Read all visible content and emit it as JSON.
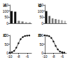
{
  "chart_data": [
    {
      "type": "bar",
      "title": "A",
      "categories": [
        null,
        null,
        null,
        null,
        null,
        null
      ],
      "values": [
        100,
        95,
        20,
        15,
        10,
        8
      ],
      "colors": [
        "#111111",
        "#111111",
        "#777777",
        "#777777",
        "#aaaaaa",
        "#aaaaaa"
      ],
      "ylim": [
        0,
        150
      ],
      "yticks": [
        0,
        50,
        100,
        150
      ],
      "grid": false
    },
    {
      "type": "bar",
      "title": "B",
      "categories": [
        null,
        null,
        null,
        null,
        null,
        null,
        null
      ],
      "values": [
        100,
        60,
        40,
        35,
        30,
        25,
        20
      ],
      "colors": [
        "#111111",
        "#555555",
        "#777777",
        "#777777",
        "#999999",
        "#aaaaaa",
        "#bbbbbb"
      ],
      "ylim": [
        0,
        150
      ],
      "yticks": [
        0,
        50,
        100,
        150
      ],
      "grid": false
    },
    {
      "type": "line",
      "title": "C",
      "marker": "circle",
      "color": "#111111",
      "x": [
        -10,
        -9.5,
        -9,
        -8.5,
        -8,
        -7.5,
        -7,
        -6.5,
        -6,
        -5.5
      ],
      "values": [
        2,
        5,
        12,
        30,
        55,
        78,
        90,
        96,
        98,
        99
      ],
      "xlim": [
        -10,
        -5
      ],
      "xticks": [
        -10,
        -8,
        -6
      ],
      "ylim": [
        0,
        100
      ],
      "yticks": [
        0,
        50,
        100
      ],
      "grid": false
    },
    {
      "type": "line",
      "title": "D",
      "marker": "circle",
      "color": "#111111",
      "x": [
        -10,
        -9.5,
        -9,
        -8.5,
        -8,
        -7.5,
        -7,
        -6.5,
        -6,
        -5.5
      ],
      "values": [
        100,
        98,
        95,
        85,
        65,
        40,
        20,
        8,
        4,
        2
      ],
      "xlim": [
        -10,
        -5
      ],
      "xticks": [
        -10,
        -8,
        -6
      ],
      "ylim": [
        0,
        100
      ],
      "yticks": [
        0,
        50,
        100
      ],
      "grid": false
    }
  ]
}
